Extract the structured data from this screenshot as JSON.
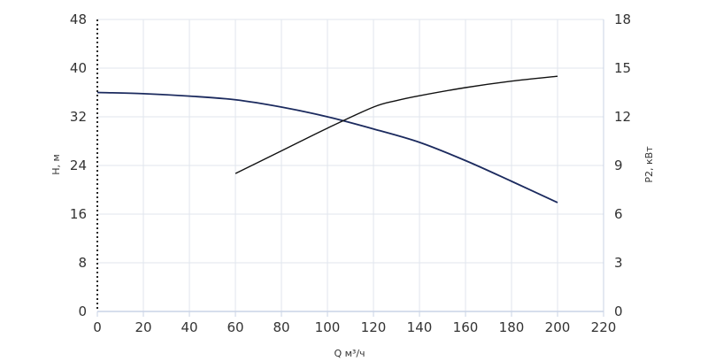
{
  "chart_data": {
    "type": "line",
    "xlabel": "Q м³/ч",
    "ylabel_left": "H, м",
    "ylabel_right": "P2, кВт",
    "xlim": [
      0,
      220
    ],
    "ylim_left": [
      0,
      48
    ],
    "ylim_right": [
      0,
      18
    ],
    "x_ticks": [
      "0",
      "20",
      "40",
      "60",
      "80",
      "100",
      "120",
      "140",
      "160",
      "180",
      "200",
      "220"
    ],
    "y_left_ticks": [
      "0",
      "8",
      "16",
      "24",
      "32",
      "40",
      "48"
    ],
    "y_right_ticks": [
      "0",
      "3",
      "6",
      "9",
      "12",
      "15",
      "18"
    ],
    "grid": true,
    "colors": {
      "head": "#1b2a5e",
      "power": "#111111",
      "grid": "#e1e5ee",
      "axis": "#c9d3e6"
    },
    "series": [
      {
        "axis": "left",
        "x": [
          0,
          20,
          40,
          60,
          80,
          100,
          120,
          140,
          160,
          180,
          200
        ],
        "values": [
          36.0,
          35.8,
          35.4,
          34.8,
          33.6,
          32.0,
          30.0,
          27.8,
          24.8,
          21.4,
          17.9
        ]
      },
      {
        "axis": "right",
        "x": [
          60,
          80,
          100,
          120,
          130,
          140,
          160,
          180,
          200
        ],
        "values": [
          8.5,
          9.9,
          11.3,
          12.6,
          13.0,
          13.3,
          13.8,
          14.2,
          14.5
        ]
      }
    ]
  }
}
